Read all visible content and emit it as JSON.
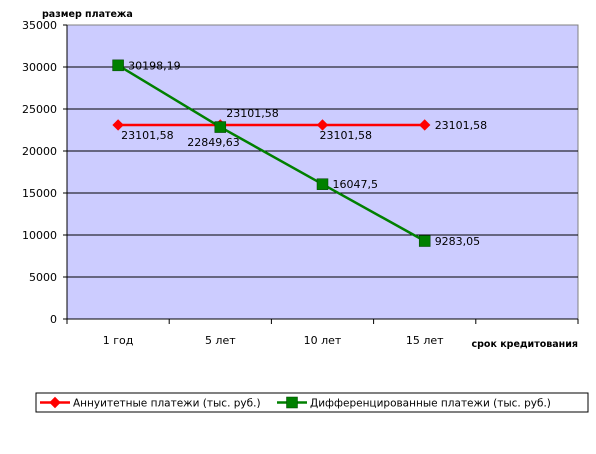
{
  "chart_data": {
    "type": "line",
    "ylabel": "размер платежа",
    "xlabel": "срок кредитования",
    "ylim": [
      0,
      35000
    ],
    "ytick_step": 5000,
    "yticks": [
      "0",
      "5000",
      "10000",
      "15000",
      "20000",
      "25000",
      "30000",
      "35000"
    ],
    "grid": true,
    "categories": [
      "1 год",
      "5 лет",
      "10 лет",
      "15 лет"
    ],
    "series": [
      {
        "name": "Аннуитетные платежи (тыс. руб.)",
        "color": "#ff0000",
        "marker": "diamond",
        "values": [
          23101.58,
          23101.58,
          23101.58,
          23101.58
        ],
        "labels": [
          "23101,58",
          "23101,58",
          "23101,58",
          "23101,58"
        ]
      },
      {
        "name": "Дифференцированные платежи (тыс. руб.)",
        "color": "#008000",
        "marker": "square",
        "values": [
          30198.19,
          22849.63,
          16047.5,
          9283.05
        ],
        "labels": [
          "30198,19",
          "22849,63",
          "16047,5",
          "9283,05"
        ]
      }
    ],
    "plot_background": "#ccccff",
    "legend_position": "bottom"
  }
}
